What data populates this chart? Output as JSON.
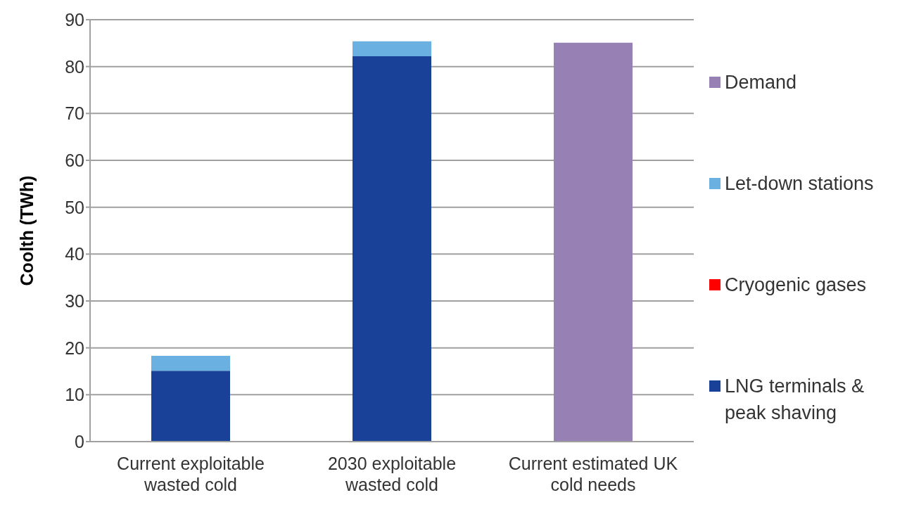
{
  "chart_data": {
    "type": "bar",
    "stacked": true,
    "ylabel": "Coolth (TWh)",
    "categories": [
      "Current exploitable wasted cold",
      "2030 exploitable wasted cold",
      "Current estimated UK cold needs"
    ],
    "series": [
      {
        "name": "LNG terminals & peak shaving",
        "color": "#1a4198",
        "values": [
          15.1,
          82.2,
          null
        ]
      },
      {
        "name": "Cryogenic gases",
        "color": "#ff0000",
        "values": [
          0,
          0,
          null
        ]
      },
      {
        "name": "Let-down stations",
        "color": "#6ab0e0",
        "values": [
          3.2,
          3.2,
          null
        ]
      },
      {
        "name": "Demand",
        "color": "#9680b4",
        "values": [
          null,
          null,
          85.1
        ]
      }
    ],
    "ylim": [
      0,
      90
    ],
    "yticks": [
      0,
      10,
      20,
      30,
      40,
      50,
      60,
      70,
      80,
      90
    ],
    "grid": "y",
    "legend": "right"
  }
}
